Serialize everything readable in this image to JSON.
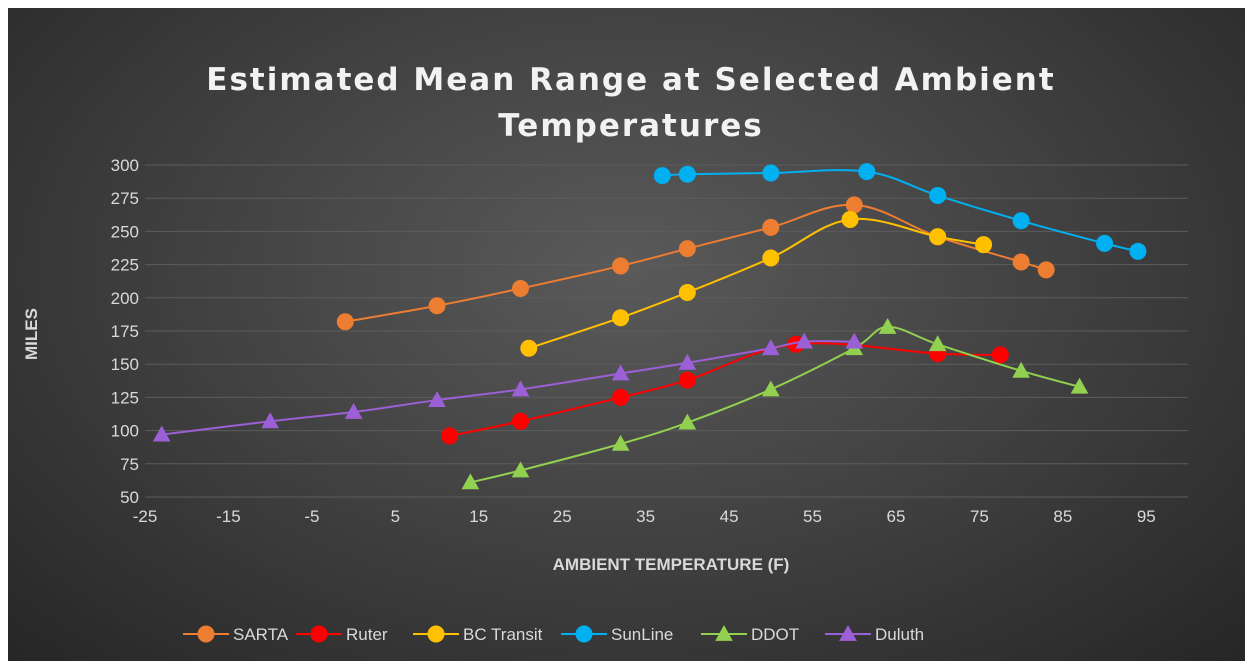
{
  "chart_data": {
    "type": "line",
    "title_lines": [
      "Estimated Mean Range at Selected Ambient",
      "Temperatures"
    ],
    "xlabel": "AMBIENT TEMPERATURE (F)",
    "ylabel": "MILES",
    "xlim": [
      -25,
      100
    ],
    "ylim": [
      50,
      300
    ],
    "xticks": [
      -25,
      -15,
      -5,
      5,
      15,
      25,
      35,
      45,
      55,
      65,
      75,
      85,
      95
    ],
    "yticks": [
      50,
      75,
      100,
      125,
      150,
      175,
      200,
      225,
      250,
      275,
      300
    ],
    "grid": true,
    "legend_position": "bottom",
    "series": [
      {
        "name": "SARTA",
        "color": "#ed7d31",
        "marker": "circle",
        "x": [
          -1,
          10,
          20,
          32,
          40,
          50,
          60,
          70,
          80,
          83
        ],
        "y": [
          182,
          194,
          207,
          224,
          237,
          253,
          270,
          246,
          227,
          221
        ]
      },
      {
        "name": "Ruter",
        "color": "#ff0000",
        "marker": "circle",
        "x": [
          11.5,
          20,
          32,
          40,
          53,
          70,
          77.5
        ],
        "y": [
          96,
          107,
          125,
          138,
          165,
          158,
          157
        ]
      },
      {
        "name": "BC Transit",
        "color": "#ffc000",
        "marker": "circle",
        "x": [
          21,
          32,
          40,
          50,
          59.5,
          70,
          75.5
        ],
        "y": [
          162,
          185,
          204,
          230,
          259,
          246,
          240
        ]
      },
      {
        "name": "SunLine",
        "color": "#00b0f0",
        "marker": "circle",
        "x": [
          37,
          40,
          50,
          61.5,
          70,
          80,
          90,
          94
        ],
        "y": [
          292,
          293,
          294,
          295,
          277,
          258,
          241,
          235
        ]
      },
      {
        "name": "DDOT",
        "color": "#92d050",
        "marker": "triangle",
        "x": [
          14,
          20,
          32,
          40,
          50,
          60,
          64,
          70,
          80,
          87
        ],
        "y": [
          61,
          70,
          90,
          106,
          131,
          162,
          178,
          165,
          145,
          133
        ]
      },
      {
        "name": "Duluth",
        "color": "#9b5fd6",
        "marker": "triangle",
        "x": [
          -23,
          -10,
          0,
          10,
          20,
          32,
          40,
          50,
          54,
          60
        ],
        "y": [
          97,
          107,
          114,
          123,
          131,
          143,
          151,
          162,
          167,
          167
        ]
      }
    ]
  }
}
